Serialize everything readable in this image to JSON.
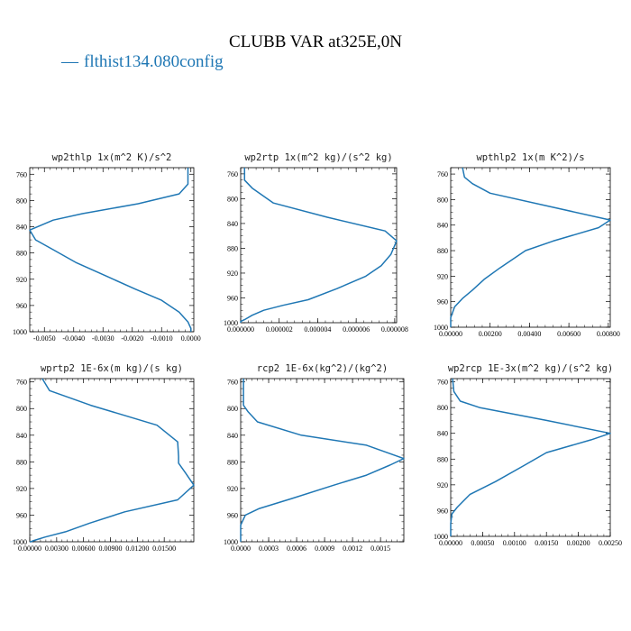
{
  "title": "CLUBB VAR at325E,0N",
  "legend": {
    "symbol": "—",
    "label": "flthist134.080config",
    "color": "#1f77b4"
  },
  "chart_data": [
    {
      "type": "line",
      "title": "wp2thlp  1x(m^2 K)/s^2",
      "xlim": [
        -0.0055,
        0.0001
      ],
      "ylim": [
        1000,
        750
      ],
      "xticks": [
        -0.005,
        -0.004,
        -0.003,
        -0.002,
        -0.001,
        0.0
      ],
      "xtick_labels": [
        "-0.0050",
        "-0.0040",
        "-0.0030",
        "-0.0020",
        "-0.0010",
        "0.0000"
      ],
      "yticks": [
        760,
        800,
        840,
        880,
        920,
        960,
        1000
      ],
      "series": [
        {
          "x": [
            -0.0001,
            -0.0001,
            -0.0004,
            -0.0018,
            -0.0037,
            -0.0047,
            -0.0055,
            -0.0053,
            -0.0047,
            -0.0039,
            -0.0029,
            -0.0019,
            -0.001,
            -0.0004,
            -0.0001,
            0.0,
            0.0
          ],
          "y": [
            750,
            775,
            790,
            805,
            820,
            830,
            845,
            860,
            875,
            895,
            915,
            935,
            952,
            970,
            985,
            995,
            1000
          ]
        }
      ]
    },
    {
      "type": "line",
      "title": "wp2rtp  1x(m^2 kg)/(s^2 kg)",
      "xlim": [
        0.0,
        8.1e-06
      ],
      "ylim": [
        1000,
        750
      ],
      "xticks": [
        0.0,
        2e-06,
        4e-06,
        6e-06,
        8e-06
      ],
      "xtick_labels": [
        "0.000000",
        "0.000002",
        "0.000004",
        "0.000006",
        "0.000008"
      ],
      "yticks": [
        760,
        800,
        840,
        880,
        920,
        960,
        1000
      ],
      "series": [
        {
          "x": [
            2e-07,
            2e-07,
            6e-07,
            1.7e-06,
            4.5e-06,
            7.5e-06,
            8.1e-06,
            7.8e-06,
            7.3e-06,
            6.5e-06,
            5e-06,
            3.5e-06,
            2.2e-06,
            1.2e-06,
            6e-07,
            2e-07,
            0.0,
            0.0
          ],
          "y": [
            750,
            770,
            783,
            807,
            830,
            852,
            868,
            890,
            908,
            925,
            945,
            963,
            972,
            980,
            988,
            995,
            998,
            1000
          ]
        }
      ]
    },
    {
      "type": "line",
      "title": "wpthlp2  1x(m K^2)/s",
      "xlim": [
        0.0,
        0.0081
      ],
      "ylim": [
        1000,
        750
      ],
      "xticks": [
        0.0,
        0.002,
        0.004,
        0.006,
        0.008
      ],
      "xtick_labels": [
        "0.00000",
        "0.00200",
        "0.00400",
        "0.00600",
        "0.00800"
      ],
      "yticks": [
        760,
        800,
        840,
        880,
        920,
        960,
        1000
      ],
      "series": [
        {
          "x": [
            0.0006,
            0.0007,
            0.0011,
            0.002,
            0.0081,
            0.0075,
            0.0052,
            0.0038,
            0.0025,
            0.0017,
            0.0011,
            0.0006,
            0.0002,
            0.0,
            0.0
          ],
          "y": [
            750,
            765,
            775,
            790,
            832,
            844,
            865,
            880,
            907,
            925,
            942,
            955,
            968,
            985,
            1000
          ]
        }
      ]
    },
    {
      "type": "line",
      "title": "wprtp2  1E-6x(m kg)/(s kg)",
      "xlim": [
        0.0,
        0.0183
      ],
      "ylim": [
        1000,
        755
      ],
      "xticks": [
        0.0,
        0.003,
        0.006,
        0.009,
        0.012,
        0.015
      ],
      "xtick_labels": [
        "0.00000",
        "0.00300",
        "0.00600",
        "0.00900",
        "0.01200",
        "0.01500"
      ],
      "yticks": [
        760,
        800,
        840,
        880,
        920,
        960,
        1000
      ],
      "series": [
        {
          "x": [
            0.0014,
            0.0022,
            0.0068,
            0.0142,
            0.0165,
            0.0166,
            0.0166,
            0.0174,
            0.0183,
            0.0165,
            0.0106,
            0.0067,
            0.004,
            0.0017,
            0.0005,
            0.0001,
            0.0
          ],
          "y": [
            755,
            773,
            795,
            825,
            850,
            872,
            882,
            897,
            915,
            937,
            955,
            972,
            985,
            993,
            998,
            1000,
            1000
          ]
        }
      ]
    },
    {
      "type": "line",
      "title": "rcp2  1E-6x(kg^2)/(kg^2)",
      "xlim": [
        0.0,
        0.00175
      ],
      "ylim": [
        1000,
        755
      ],
      "xticks": [
        0.0,
        0.0003,
        0.0006,
        0.0009,
        0.0012,
        0.0015
      ],
      "xtick_labels": [
        "0.0000",
        "0.0003",
        "0.0006",
        "0.0009",
        "0.0012",
        "0.0015"
      ],
      "yticks": [
        760,
        800,
        840,
        880,
        920,
        960,
        1000
      ],
      "series": [
        {
          "x": [
            3e-05,
            3e-05,
            3e-05,
            8e-05,
            0.00018,
            0.00065,
            0.00135,
            0.00175,
            0.0016,
            0.00135,
            0.001,
            0.00055,
            0.0002,
            5e-05,
            0.0,
            0.0
          ],
          "y": [
            755,
            775,
            795,
            805,
            820,
            840,
            855,
            875,
            885,
            900,
            915,
            935,
            950,
            960,
            975,
            1000
          ]
        }
      ]
    },
    {
      "type": "line",
      "title": "wp2rcp  1E-3x(m^2 kg)/(s^2 kg)",
      "xlim": [
        0.0,
        0.0025
      ],
      "ylim": [
        1000,
        755
      ],
      "xticks": [
        0.0,
        0.0005,
        0.001,
        0.0015,
        0.002,
        0.0025
      ],
      "xtick_labels": [
        "0.00000",
        "0.00050",
        "0.00100",
        "0.00150",
        "0.00200",
        "0.00250"
      ],
      "yticks": [
        760,
        800,
        840,
        880,
        920,
        960,
        1000
      ],
      "series": [
        {
          "x": [
            3e-05,
            5e-05,
            0.00015,
            0.00045,
            0.0015,
            0.0025,
            0.0022,
            0.0015,
            0.00115,
            0.0007,
            0.0003,
            0.0001,
            2e-05,
            0.0,
            0.0
          ],
          "y": [
            755,
            775,
            790,
            800,
            820,
            840,
            850,
            870,
            890,
            915,
            935,
            955,
            965,
            980,
            1000
          ]
        }
      ]
    }
  ]
}
